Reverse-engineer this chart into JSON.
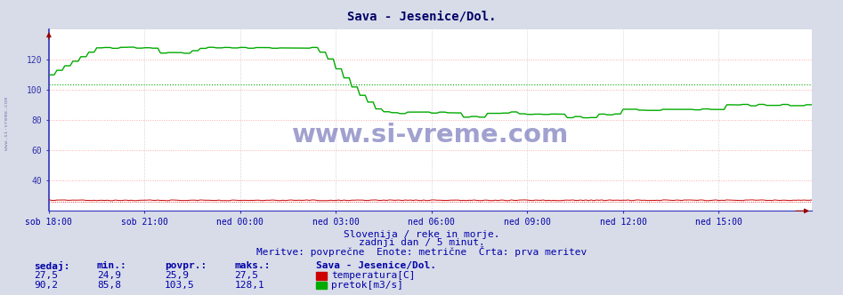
{
  "title": "Sava - Jesenice/Dol.",
  "title_color": "#000066",
  "title_fontsize": 10,
  "bg_color": "#d8dce8",
  "plot_bg_color": "#ffffff",
  "grid_color_h": "#ffaaaa",
  "grid_color_v": "#ccccdd",
  "xlabel_color": "#0000aa",
  "ylabel_color": "#3333aa",
  "x_tick_labels": [
    "sob 18:00",
    "sob 21:00",
    "ned 00:00",
    "ned 03:00",
    "ned 06:00",
    "ned 09:00",
    "ned 12:00",
    "ned 15:00"
  ],
  "x_tick_positions": [
    0,
    36,
    72,
    108,
    144,
    180,
    216,
    252
  ],
  "ylim": [
    20,
    140
  ],
  "yticks": [
    40,
    60,
    80,
    100,
    120
  ],
  "n_points": 288,
  "temp_color": "#cc0000",
  "flow_color": "#00aa00",
  "avg_flow_value": 103.5,
  "avg_temp_value": 25.9,
  "subtitle_line1": "Slovenija / reke in morje.",
  "subtitle_line2": "zadnji dan / 5 minut.",
  "subtitle_line3": "Meritve: povprečne  Enote: metrične  Črta: prva meritev",
  "subtitle_color": "#0000aa",
  "subtitle_fontsize": 8,
  "table_headers": [
    "sedaj:",
    "min.:",
    "povpr.:",
    "maks.:"
  ],
  "table_row1": [
    "27,5",
    "24,9",
    "25,9",
    "27,5"
  ],
  "table_row2": [
    "90,2",
    "85,8",
    "103,5",
    "128,1"
  ],
  "table_color": "#0000aa",
  "table_fontsize": 8,
  "station_label": "Sava - Jesenice/Dol.",
  "legend_temp": "temperatura[C]",
  "legend_flow": "pretok[m3/s]",
  "temp_color_legend": "#cc0000",
  "flow_color_legend": "#00aa00",
  "left_watermark": "www.si-vreme.com",
  "left_watermark_color": "#7777aa"
}
